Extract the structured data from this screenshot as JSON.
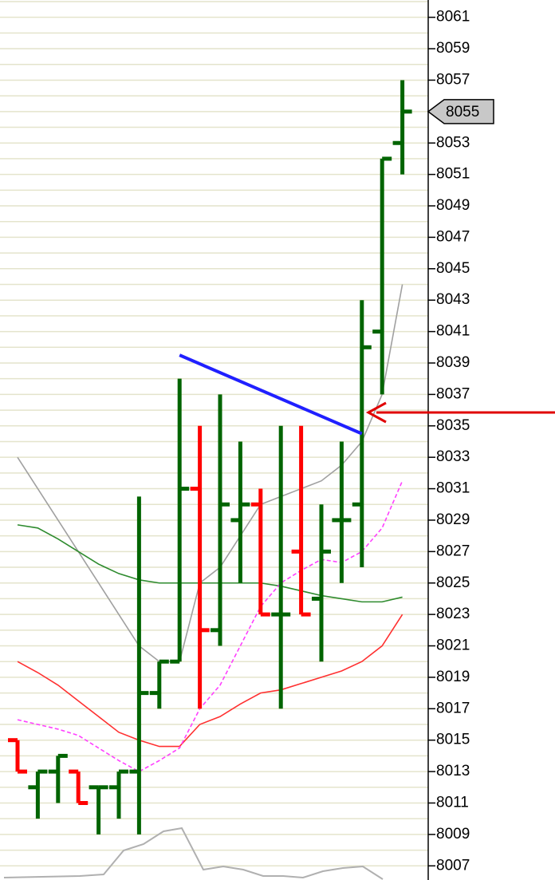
{
  "chart_data": {
    "type": "ohlc",
    "open": [
      8015,
      8012,
      8013,
      8013,
      8012,
      8012,
      8013,
      8018,
      8020,
      8031,
      8022,
      8029,
      8030,
      8023,
      8027,
      8024,
      8029,
      8030,
      8041,
      8053
    ],
    "high": [
      8015,
      8013,
      8014,
      8013,
      8012,
      8013,
      8030.5,
      8020,
      8038,
      8035,
      8037,
      8034,
      8031,
      8035,
      8035,
      8030,
      8034,
      8043,
      8052,
      8057
    ],
    "low": [
      8013,
      8010,
      8011,
      8011,
      8009,
      8010,
      8009,
      8017,
      8020,
      8017,
      8021,
      8025,
      8023,
      8017,
      8023,
      8020,
      8025,
      8026,
      8037,
      8051
    ],
    "close": [
      8013,
      8013,
      8014,
      8011,
      8012,
      8013,
      8018,
      8020,
      8031,
      8022,
      8030,
      8030,
      8023,
      8023,
      8023,
      8027,
      8029,
      8040,
      8052,
      8055
    ],
    "up_color": "#006400",
    "down_color": "#ff0000",
    "lines": [
      {
        "color": "#a0a0a0",
        "values": [
          8033,
          8031,
          8029,
          8027,
          8025,
          8023,
          8021,
          8020,
          8020,
          8025,
          8026,
          8028,
          8030,
          8030.5,
          8031,
          8031.5,
          8032.5,
          8034,
          8037,
          8044
        ]
      },
      {
        "color": "#2e8b2e",
        "values": [
          8028.7,
          8028.5,
          8027.8,
          8027,
          8026.2,
          8025.6,
          8025.2,
          8025,
          8025,
          8025,
          8025,
          8025,
          8025,
          8024.8,
          8024.5,
          8024.2,
          8024,
          8023.8,
          8023.8,
          8024.1
        ]
      },
      {
        "color": "#ff3030",
        "values": [
          8020,
          8019.3,
          8018.5,
          8017.5,
          8016.5,
          8015.5,
          8015,
          8014.6,
          8014.6,
          8016,
          8016.5,
          8017.3,
          8018,
          8018.2,
          8018.6,
          8019,
          8019.4,
          8020,
          8021,
          8023
        ],
        "dashed": false
      },
      {
        "color": "#ff40ff",
        "values": [
          8016.3,
          8016,
          8015.7,
          8015.3,
          8014.5,
          8013.7,
          8013,
          8013.7,
          8014.5,
          8017,
          8018.5,
          8021,
          8023.5,
          8025,
          8025.8,
          8026.5,
          8026.3,
          8027,
          8028.5,
          8031.5
        ],
        "dashed": true
      }
    ],
    "trendline": {
      "color": "#2020ff",
      "x": [
        8,
        17
      ],
      "values": [
        8039.5,
        8034.5
      ]
    },
    "last_price": 8055,
    "ylim": [
      8006.1,
      8062.1
    ],
    "yticks": [
      8007,
      8009,
      8011,
      8013,
      8015,
      8017,
      8019,
      8021,
      8023,
      8025,
      8027,
      8029,
      8031,
      8033,
      8035,
      8037,
      8039,
      8041,
      8043,
      8045,
      8047,
      8049,
      8051,
      8053,
      8055,
      8057,
      8059,
      8061
    ],
    "ygrid": [
      8007,
      8008,
      8009,
      8010,
      8011,
      8012,
      8013,
      8014,
      8015,
      8016,
      8017,
      8018,
      8019,
      8020,
      8021,
      8022,
      8023,
      8024,
      8025,
      8026,
      8027,
      8028,
      8029,
      8030,
      8031,
      8032,
      8033,
      8034,
      8035,
      8036,
      8037,
      8038,
      8039,
      8040,
      8041,
      8042,
      8043,
      8044,
      8045,
      8046,
      8047,
      8048,
      8049,
      8050,
      8051,
      8052,
      8053,
      8054,
      8055,
      8056,
      8057,
      8058,
      8059,
      8060,
      8061,
      8062
    ]
  }
}
